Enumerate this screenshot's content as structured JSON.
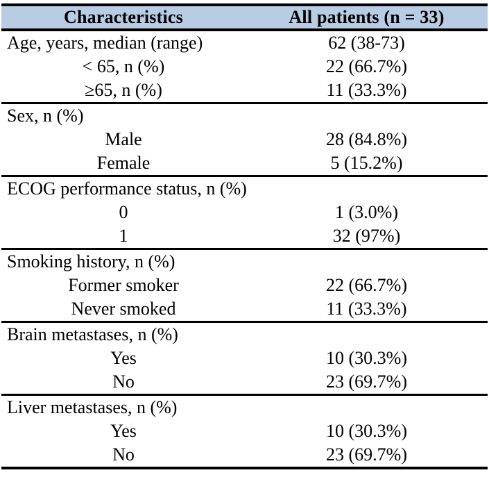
{
  "table": {
    "title_semantics": "Patient baseline characteristics table",
    "colors": {
      "header_background": "#b8cce4",
      "border": "#000000",
      "text": "#000000"
    },
    "header": {
      "characteristics": "Characteristics",
      "all_patients": "All patients (n = 33)"
    },
    "rows": [
      {
        "label": "Age, years, median (range)",
        "value": "62 (38-73)"
      },
      {
        "label": "< 65, n (%)",
        "value": "22 (66.7%)"
      },
      {
        "label": "≥65, n (%)",
        "value": "11 (33.3%)"
      },
      {
        "label": "Sex, n (%)",
        "value": ""
      },
      {
        "label": "Male",
        "value": "28 (84.8%)"
      },
      {
        "label": "Female",
        "value": "5 (15.2%)"
      },
      {
        "label": "ECOG performance status, n (%)",
        "value": ""
      },
      {
        "label": "0",
        "value": "1 (3.0%)"
      },
      {
        "label": "1",
        "value": "32 (97%)"
      },
      {
        "label": "Smoking history, n (%)",
        "value": ""
      },
      {
        "label": "Former smoker",
        "value": "22 (66.7%)"
      },
      {
        "label": "Never smoked",
        "value": "11 (33.3%)"
      },
      {
        "label": "Brain metastases, n (%)",
        "value": ""
      },
      {
        "label": "Yes",
        "value": "10 (30.3%)"
      },
      {
        "label": "No",
        "value": "23 (69.7%)"
      },
      {
        "label": "Liver metastases, n (%)",
        "value": ""
      },
      {
        "label": "Yes",
        "value": "10 (30.3%)"
      },
      {
        "label": "No",
        "value": "23 (69.7%)"
      }
    ]
  }
}
